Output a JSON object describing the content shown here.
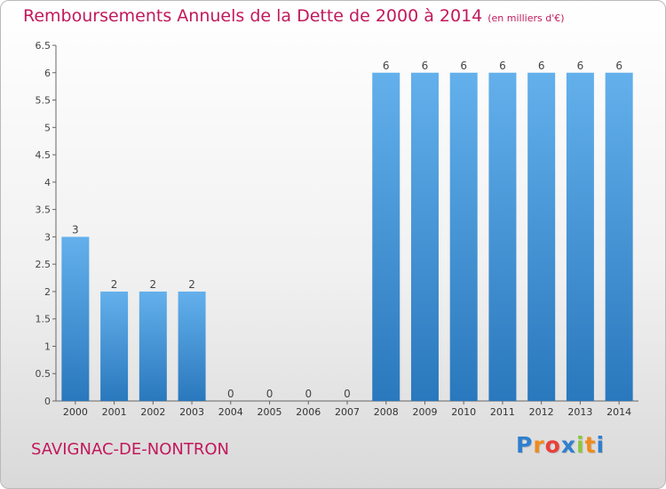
{
  "chart_data": {
    "type": "bar",
    "title": "Remboursements Annuels de la Dette de 2000 à 2014",
    "unit": "(en milliers d'€)",
    "categories": [
      "2000",
      "2001",
      "2002",
      "2003",
      "2004",
      "2005",
      "2006",
      "2007",
      "2008",
      "2009",
      "2010",
      "2011",
      "2012",
      "2013",
      "2014"
    ],
    "values": [
      3,
      2,
      2,
      2,
      0,
      0,
      0,
      0,
      6,
      6,
      6,
      6,
      6,
      6,
      6
    ],
    "data_labels": [
      "3",
      "2",
      "2",
      "2",
      "0",
      "0",
      "0",
      "0",
      "6",
      "6",
      "6",
      "6",
      "6",
      "6",
      "6"
    ],
    "yticks": [
      "0",
      "0.5",
      "1",
      "1.5",
      "2",
      "2.5",
      "3",
      "3.5",
      "4",
      "4.5",
      "5",
      "5.5",
      "6",
      "6.5"
    ],
    "ylim": [
      0,
      6.5
    ],
    "xlabel": "",
    "ylabel": "",
    "grid": false,
    "bar_color": "#3a8fd2"
  },
  "commune": "SAVIGNAC-DE-NONTRON",
  "logo": {
    "letters": [
      "P",
      "r",
      "o",
      "x",
      "i",
      "t",
      "i"
    ],
    "colors": [
      "#2f7fcf",
      "#f08a1c",
      "#e8403a",
      "#2f7fcf",
      "#8cc63f",
      "#f08a1c",
      "#2f7fcf"
    ]
  }
}
